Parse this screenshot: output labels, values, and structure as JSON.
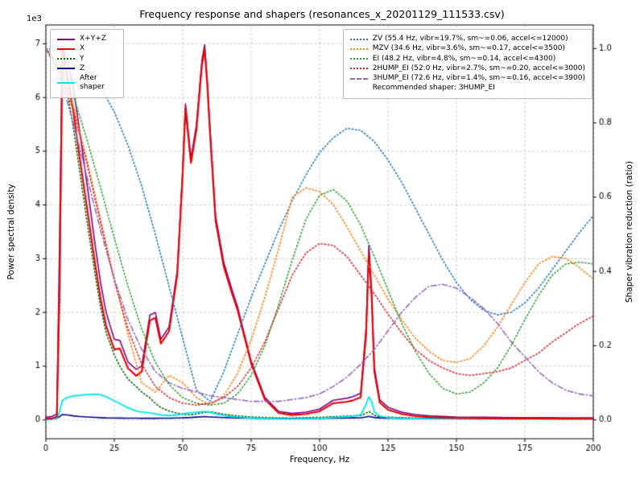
{
  "figure": {
    "title": "Frequency response and shapers (resonances_x_20201129_111533.csv)"
  },
  "chart_data": {
    "type": "line",
    "title": "Frequency response and shapers (resonances_x_20201129_111533.csv)",
    "xlabel": "Frequency, Hz",
    "ylabel_left": "Power spectral density",
    "ylabel_right": "Shaper vibration reduction (ratio)",
    "offset_text": "1e3",
    "grid": true,
    "x_axis": {
      "range": [
        0,
        200
      ],
      "ticks": [
        0,
        25,
        50,
        75,
        100,
        125,
        150,
        175,
        200
      ]
    },
    "left_axis": {
      "range": [
        -350,
        7350
      ],
      "ticks": [
        0,
        1,
        2,
        3,
        4,
        5,
        6,
        7
      ],
      "tick_scale": 1000
    },
    "right_axis": {
      "range": [
        -0.0506,
        1.0637
      ],
      "ticks": [
        0.0,
        0.2,
        0.4,
        0.6,
        0.8,
        1.0
      ]
    },
    "x_psd": [
      0,
      2,
      4,
      5,
      6,
      8,
      10,
      12,
      15,
      18,
      20,
      22,
      25,
      27,
      30,
      33,
      35,
      38,
      40,
      42,
      45,
      48,
      50,
      51,
      53,
      55,
      57,
      58,
      59,
      60,
      62,
      65,
      68,
      70,
      75,
      80,
      85,
      90,
      95,
      100,
      105,
      110,
      112,
      115,
      117,
      118,
      119,
      120,
      122,
      125,
      130,
      135,
      140,
      150,
      160,
      170,
      180,
      190,
      200
    ],
    "psd_series": [
      {
        "name": "X+Y+Z",
        "color": "#800080",
        "style": "solid",
        "width": 1.6,
        "y": [
          50,
          60,
          110,
          3300,
          6950,
          6650,
          6200,
          5500,
          4400,
          3250,
          2550,
          2000,
          1500,
          1480,
          1080,
          940,
          1000,
          1950,
          2000,
          1500,
          1730,
          2780,
          4680,
          5880,
          4860,
          5490,
          6690,
          6980,
          6290,
          5390,
          3790,
          2930,
          2420,
          2110,
          1090,
          420,
          160,
          120,
          145,
          200,
          365,
          405,
          430,
          495,
          1720,
          3250,
          2420,
          980,
          370,
          235,
          145,
          100,
          75,
          55,
          50,
          42,
          42,
          40,
          38
        ]
      },
      {
        "name": "Y",
        "color": "#006400",
        "style": "dotted",
        "width": 1.6,
        "y": [
          20,
          25,
          50,
          2200,
          6500,
          6050,
          5450,
          4750,
          3700,
          2700,
          2100,
          1620,
          1210,
          1000,
          760,
          620,
          520,
          410,
          310,
          230,
          165,
          125,
          105,
          100,
          95,
          110,
          130,
          140,
          140,
          150,
          135,
          105,
          85,
          75,
          55,
          45,
          38,
          36,
          42,
          48,
          62,
          72,
          76,
          82,
          125,
          155,
          125,
          85,
          60,
          52,
          42,
          35,
          32,
          28,
          26,
          24,
          24,
          22,
          22
        ]
      },
      {
        "name": "Z",
        "color": "#00008b",
        "style": "solid",
        "width": 1.6,
        "y": [
          15,
          18,
          30,
          60,
          100,
          92,
          75,
          65,
          55,
          48,
          42,
          38,
          36,
          34,
          32,
          31,
          30,
          30,
          30,
          31,
          33,
          36,
          40,
          42,
          45,
          52,
          58,
          60,
          58,
          55,
          50,
          44,
          40,
          38,
          32,
          28,
          26,
          25,
          26,
          28,
          32,
          35,
          37,
          40,
          55,
          65,
          55,
          45,
          38,
          34,
          30,
          28,
          27,
          25,
          24,
          23,
          23,
          22,
          22
        ]
      },
      {
        "name": "After shaper",
        "color": "#00e5ee",
        "style": "solid",
        "width": 1.8,
        "y": [
          10,
          12,
          25,
          150,
          360,
          420,
          445,
          455,
          472,
          480,
          468,
          430,
          355,
          305,
          225,
          165,
          145,
          132,
          112,
          92,
          82,
          92,
          112,
          122,
          132,
          142,
          152,
          158,
          152,
          142,
          112,
          82,
          62,
          52,
          36,
          26,
          21,
          20,
          24,
          30,
          44,
          58,
          68,
          96,
          290,
          430,
          340,
          150,
          70,
          42,
          30,
          26,
          24,
          21,
          20,
          20,
          20,
          20,
          20
        ]
      },
      {
        "name": "X",
        "color": "#e80000",
        "style": "solid",
        "width": 2.1,
        "y": [
          20,
          25,
          60,
          2500,
          6900,
          6350,
          5750,
          5000,
          3950,
          2900,
          2250,
          1750,
          1310,
          1330,
          960,
          820,
          900,
          1850,
          1900,
          1420,
          1650,
          2700,
          4600,
          5800,
          4780,
          5400,
          6600,
          6900,
          6200,
          5300,
          3700,
          2850,
          2350,
          2050,
          1050,
          380,
          130,
          90,
          110,
          160,
          310,
          340,
          360,
          420,
          1600,
          3100,
          2300,
          900,
          320,
          190,
          110,
          70,
          50,
          35,
          30,
          25,
          25,
          22,
          20
        ]
      }
    ],
    "legend_left_order": [
      "X+Y+Z",
      "X",
      "Y",
      "Z",
      "After shaper"
    ],
    "x_shaper": [
      0,
      5,
      10,
      15,
      20,
      25,
      30,
      35,
      40,
      45,
      50,
      55,
      60,
      65,
      70,
      75,
      80,
      85,
      90,
      95,
      100,
      105,
      110,
      115,
      120,
      125,
      130,
      135,
      140,
      145,
      150,
      155,
      160,
      165,
      170,
      175,
      180,
      185,
      190,
      195,
      200
    ],
    "shaper_series": [
      {
        "name": "ZV (55.4 Hz, vibr=19.7%, sm~=0.06, accel<=12000)",
        "color": "#1f77b4",
        "style": "dotted",
        "width": 1.6,
        "y": [
          1.0,
          0.995,
          0.975,
          0.945,
          0.895,
          0.83,
          0.74,
          0.63,
          0.5,
          0.36,
          0.22,
          0.08,
          0.05,
          0.13,
          0.23,
          0.33,
          0.42,
          0.51,
          0.59,
          0.66,
          0.72,
          0.76,
          0.785,
          0.78,
          0.75,
          0.7,
          0.64,
          0.57,
          0.5,
          0.43,
          0.37,
          0.325,
          0.295,
          0.283,
          0.29,
          0.315,
          0.355,
          0.405,
          0.455,
          0.505,
          0.55
        ]
      },
      {
        "name": "MZV (34.6 Hz, vibr=3.6%, sm~=0.17, accel<=3500)",
        "color": "#ff7f0e",
        "style": "dotted",
        "width": 1.6,
        "y": [
          1.0,
          0.95,
          0.845,
          0.7,
          0.54,
          0.38,
          0.23,
          0.1,
          0.075,
          0.12,
          0.1,
          0.06,
          0.04,
          0.065,
          0.125,
          0.215,
          0.33,
          0.46,
          0.6,
          0.625,
          0.615,
          0.58,
          0.52,
          0.455,
          0.39,
          0.325,
          0.27,
          0.22,
          0.185,
          0.16,
          0.155,
          0.165,
          0.2,
          0.25,
          0.31,
          0.37,
          0.42,
          0.44,
          0.435,
          0.41,
          0.38
        ]
      },
      {
        "name": "EI (48.2 Hz, vibr=4.8%, sm~=0.14, accel<=4300)",
        "color": "#2ca02c",
        "style": "dotted",
        "width": 1.6,
        "y": [
          1.0,
          0.96,
          0.875,
          0.755,
          0.625,
          0.49,
          0.36,
          0.245,
          0.155,
          0.095,
          0.06,
          0.045,
          0.04,
          0.045,
          0.07,
          0.12,
          0.2,
          0.31,
          0.43,
          0.54,
          0.605,
          0.62,
          0.59,
          0.525,
          0.44,
          0.35,
          0.26,
          0.185,
          0.125,
          0.085,
          0.07,
          0.075,
          0.1,
          0.14,
          0.2,
          0.27,
          0.335,
          0.39,
          0.42,
          0.425,
          0.42
        ]
      },
      {
        "name": "2HUMP_EI (52.0 Hz, vibr=2.7%, sm~=0.20, accel<=3000)",
        "color": "#d62728",
        "style": "dotted",
        "width": 1.6,
        "y": [
          1.0,
          0.94,
          0.835,
          0.69,
          0.53,
          0.375,
          0.245,
          0.15,
          0.09,
          0.06,
          0.045,
          0.04,
          0.045,
          0.06,
          0.09,
          0.14,
          0.21,
          0.3,
          0.39,
          0.45,
          0.475,
          0.47,
          0.44,
          0.39,
          0.34,
          0.285,
          0.235,
          0.19,
          0.16,
          0.14,
          0.125,
          0.12,
          0.125,
          0.13,
          0.14,
          0.16,
          0.18,
          0.21,
          0.235,
          0.26,
          0.28
        ]
      },
      {
        "name": "3HUMP_EI (72.6 Hz, vibr=1.4%, sm~=0.16, accel<=3900)",
        "color": "#9467bd",
        "style": "dashdot",
        "width": 1.6,
        "y": [
          1.0,
          0.93,
          0.8,
          0.655,
          0.51,
          0.38,
          0.27,
          0.19,
          0.13,
          0.1,
          0.085,
          0.075,
          0.065,
          0.06,
          0.055,
          0.05,
          0.05,
          0.05,
          0.055,
          0.06,
          0.07,
          0.09,
          0.115,
          0.15,
          0.19,
          0.24,
          0.29,
          0.33,
          0.36,
          0.365,
          0.355,
          0.33,
          0.3,
          0.26,
          0.21,
          0.17,
          0.13,
          0.1,
          0.08,
          0.07,
          0.065
        ]
      }
    ],
    "recommended_label": "Recommended shaper: 3HUMP_EI"
  }
}
